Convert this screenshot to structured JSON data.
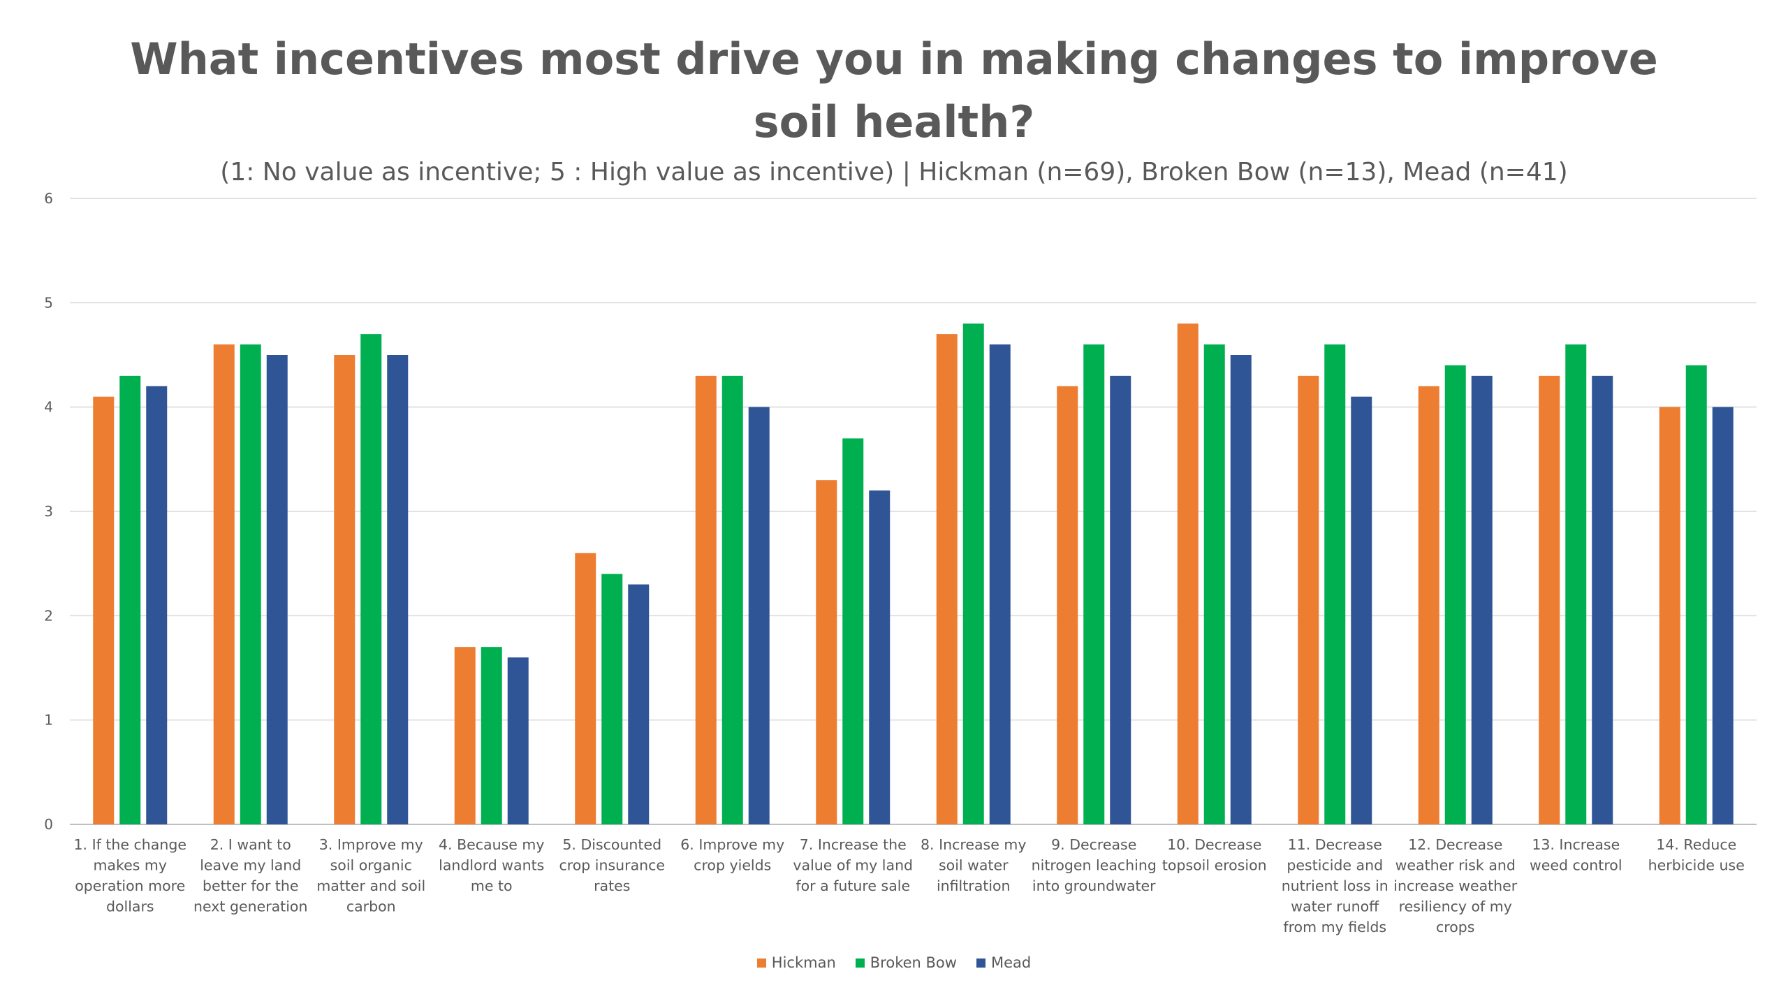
{
  "chart_data": {
    "type": "bar",
    "title_line1": "What incentives most drive you in making changes to improve",
    "title_line2": "soil health?",
    "subtitle": "(1:  No value as incentive; 5 :  High value as incentive) | Hickman (n=69), Broken Bow (n=13), Mead (n=41)",
    "ylim": [
      0,
      6
    ],
    "yticks": [
      0,
      1,
      2,
      3,
      4,
      5,
      6
    ],
    "grid": true,
    "legend_position": "bottom",
    "categories": [
      [
        "1.  If the change",
        "makes my",
        "operation more",
        "dollars"
      ],
      [
        "2.  I want to",
        "leave my land",
        "better for the",
        "next generation"
      ],
      [
        "3.  Improve my",
        "soil organic",
        "matter and soil",
        "carbon"
      ],
      [
        "4.  Because my",
        "landlord wants",
        "me to"
      ],
      [
        "5.  Discounted",
        "crop insurance",
        "rates"
      ],
      [
        "6.  Improve my",
        "crop yields"
      ],
      [
        "7.  Increase the",
        "value of my land",
        "for a future sale"
      ],
      [
        "8.  Increase my",
        "soil water",
        "infiltration"
      ],
      [
        "9.  Decrease",
        "nitrogen leaching",
        "into groundwater"
      ],
      [
        "10. Decrease",
        "topsoil erosion"
      ],
      [
        "11. Decrease",
        "pesticide and",
        "nutrient loss in",
        "water runoff",
        "from my fields"
      ],
      [
        "12. Decrease",
        "weather risk and",
        "increase weather",
        "resiliency of my",
        "crops"
      ],
      [
        "13. Increase",
        "weed control"
      ],
      [
        "14. Reduce",
        "herbicide use"
      ]
    ],
    "series": [
      {
        "name": "Hickman",
        "color": "#ED7D31",
        "values": [
          4.1,
          4.6,
          4.5,
          1.7,
          2.6,
          4.3,
          3.3,
          4.7,
          4.2,
          4.8,
          4.3,
          4.2,
          4.3,
          4.0
        ]
      },
      {
        "name": "Broken Bow",
        "color": "#00B050",
        "values": [
          4.3,
          4.6,
          4.7,
          1.7,
          2.4,
          4.3,
          3.7,
          4.8,
          4.6,
          4.6,
          4.6,
          4.4,
          4.6,
          4.4
        ]
      },
      {
        "name": "Mead",
        "color": "#2F5597",
        "values": [
          4.2,
          4.5,
          4.5,
          1.6,
          2.3,
          4.0,
          3.2,
          4.6,
          4.3,
          4.5,
          4.1,
          4.3,
          4.3,
          4.0
        ]
      }
    ]
  }
}
